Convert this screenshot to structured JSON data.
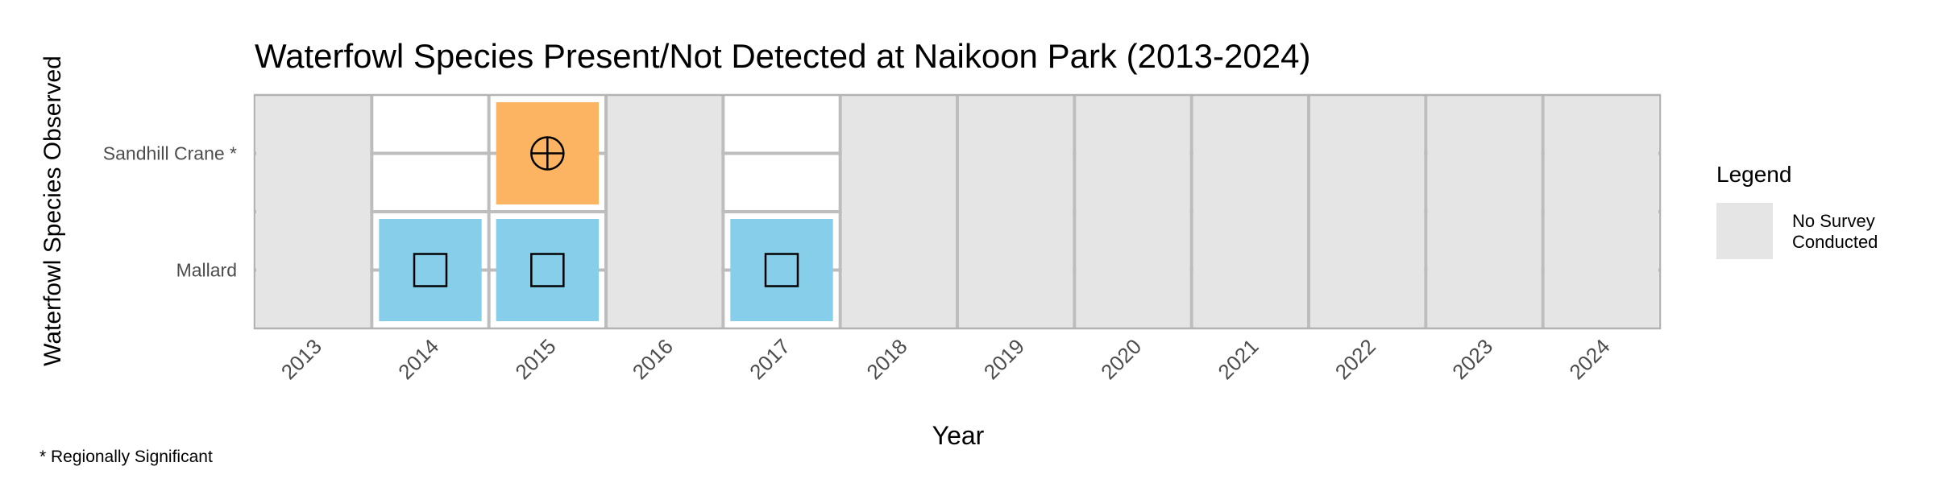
{
  "chart_data": {
    "type": "heatmap",
    "title": "Waterfowl Species Present/Not Detected at Naikoon Park (2013-2024)",
    "xlabel": "Year",
    "ylabel": "Waterfowl Species Observed",
    "years": [
      "2013",
      "2014",
      "2015",
      "2016",
      "2017",
      "2018",
      "2019",
      "2020",
      "2021",
      "2022",
      "2023",
      "2024"
    ],
    "species": [
      "Sandhill Crane *",
      "Mallard"
    ],
    "no_survey_years": [
      "2013",
      "2016",
      "2018",
      "2019",
      "2020",
      "2021",
      "2022",
      "2023",
      "2024"
    ],
    "observations": [
      {
        "year": "2015",
        "species": "Sandhill Crane *",
        "color": "#FDB462",
        "symbol": "circle-plus"
      },
      {
        "year": "2014",
        "species": "Mallard",
        "color": "#87CEEB",
        "symbol": "square"
      },
      {
        "year": "2015",
        "species": "Mallard",
        "color": "#87CEEB",
        "symbol": "square"
      },
      {
        "year": "2017",
        "species": "Mallard",
        "color": "#87CEEB",
        "symbol": "square"
      }
    ],
    "legend": {
      "title": "Legend",
      "position": "right",
      "entries": [
        {
          "label_lines": [
            "No Survey",
            "Conducted"
          ],
          "color": "#E5E5E5"
        }
      ]
    },
    "footnote": "* Regionally Significant",
    "colors": {
      "no_survey": "#E5E5E5",
      "grid": "#BDBDBD",
      "border": "#B3B3B3"
    }
  }
}
